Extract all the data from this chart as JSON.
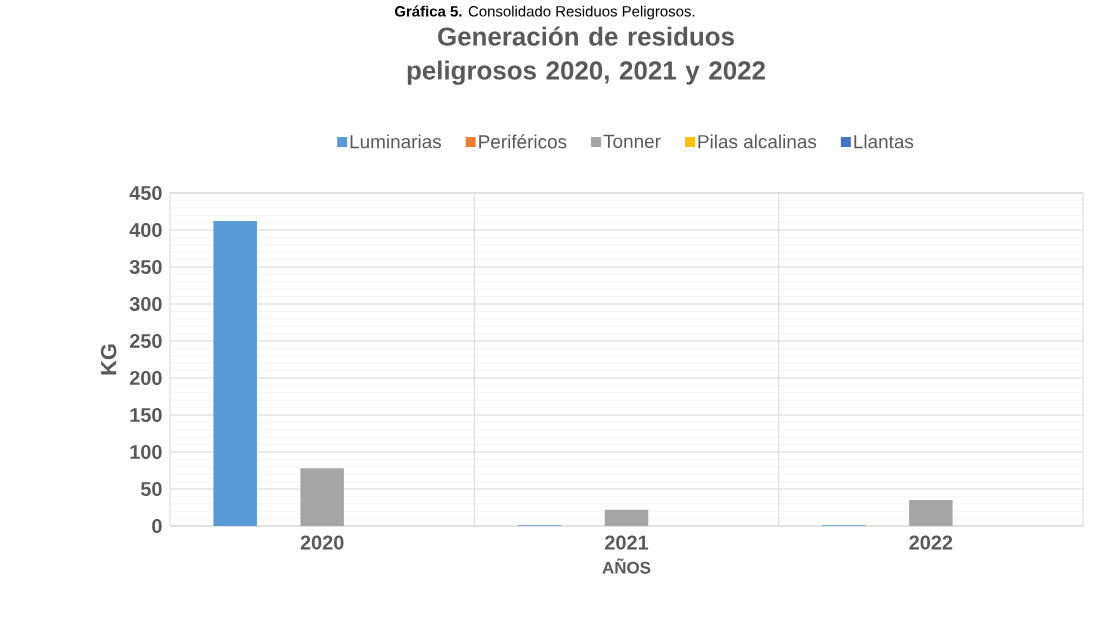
{
  "chart_data": {
    "type": "bar",
    "title": "Generación de residuos peligrosos 2020, 2021 y 2022",
    "xlabel": "AÑOS",
    "ylabel": "KG",
    "annotations": [
      "**Gráfica 5.** Consolidado Residuos Peligrosos."
    ],
    "categories": [
      "2020",
      "2021",
      "2022"
    ],
    "series": [
      {
        "name": "Luminarias",
        "color": "#5b9bd5",
        "values": [
          412,
          1,
          1
        ]
      },
      {
        "name": "Periféricos",
        "color": "#ed7d31",
        "values": [
          0,
          0,
          0
        ]
      },
      {
        "name": "Tonner",
        "color": "#a5a5a5",
        "values": [
          78,
          22,
          35
        ]
      },
      {
        "name": "Pilas alcalinas",
        "color": "#ffc000",
        "values": [
          0,
          0,
          0
        ]
      },
      {
        "name": "Llantas",
        "color": "#4472c4",
        "values": [
          0,
          0,
          0
        ]
      }
    ],
    "ylim": [
      0,
      450
    ],
    "yticks": [
      0,
      50,
      100,
      150,
      200,
      250,
      300,
      350,
      400,
      450
    ],
    "grid": true,
    "legend": "top"
  }
}
